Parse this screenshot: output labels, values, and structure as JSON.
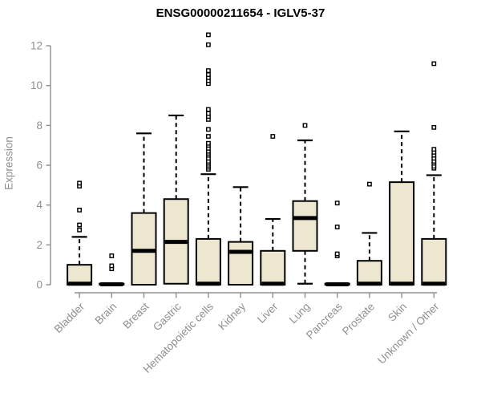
{
  "title": "ENSG00000211654 - IGLV5-37",
  "chart_data": {
    "type": "boxplot",
    "title": "ENSG00000211654 - IGLV5-37",
    "ylabel": "Expression",
    "xlabel": "",
    "ylim": [
      0,
      12.7
    ],
    "yticks": [
      0,
      2,
      4,
      6,
      8,
      10,
      12
    ],
    "grid": false,
    "legend": "none",
    "box_fill": "#ece7ce",
    "box_stroke": "#000000",
    "axis_color": "#8f8f8f",
    "label_color": "#8f8f8f",
    "categories": [
      "Bladder",
      "Brain",
      "Breast",
      "Gastric",
      "Hematopoietic cells",
      "Kidney",
      "Liver",
      "Lung",
      "Pancreas",
      "Prostate",
      "Skin",
      "Unknown / Other"
    ],
    "series": [
      {
        "name": "Bladder",
        "q1": 0,
        "median": 0.05,
        "q3": 1.0,
        "whisker_low": 0,
        "whisker_high": 2.4,
        "outliers": [
          2.75,
          3.0,
          3.75,
          4.95,
          5.1
        ]
      },
      {
        "name": "Brain",
        "q1": 0,
        "median": 0.02,
        "q3": 0.06,
        "whisker_low": 0,
        "whisker_high": 0.06,
        "outliers": [
          0.8,
          0.95,
          1.45
        ]
      },
      {
        "name": "Breast",
        "q1": 0,
        "median": 1.7,
        "q3": 3.6,
        "whisker_low": 0,
        "whisker_high": 7.6,
        "outliers": []
      },
      {
        "name": "Gastric",
        "q1": 0.05,
        "median": 2.15,
        "q3": 4.3,
        "whisker_low": 0.05,
        "whisker_high": 8.5,
        "outliers": []
      },
      {
        "name": "Hematopoietic cells",
        "q1": 0,
        "median": 0.05,
        "q3": 2.3,
        "whisker_low": 0,
        "whisker_high": 5.55,
        "outliers": [
          5.8,
          5.9,
          6.0,
          6.1,
          6.2,
          6.35,
          6.5,
          6.6,
          6.7,
          6.85,
          7.0,
          7.1,
          7.45,
          7.8,
          8.3,
          8.45,
          8.6,
          8.8,
          10.1,
          10.25,
          10.4,
          10.55,
          10.75,
          12.05,
          12.55
        ]
      },
      {
        "name": "Kidney",
        "q1": 0,
        "median": 1.65,
        "q3": 2.15,
        "whisker_low": 0,
        "whisker_high": 4.9,
        "outliers": []
      },
      {
        "name": "Liver",
        "q1": 0,
        "median": 0.05,
        "q3": 1.7,
        "whisker_low": 0,
        "whisker_high": 3.3,
        "outliers": [
          7.45
        ]
      },
      {
        "name": "Lung",
        "q1": 1.7,
        "median": 3.35,
        "q3": 4.2,
        "whisker_low": 0.05,
        "whisker_high": 7.25,
        "outliers": [
          8.0
        ]
      },
      {
        "name": "Pancreas",
        "q1": 0,
        "median": 0.02,
        "q3": 0.06,
        "whisker_low": 0,
        "whisker_high": 0.06,
        "outliers": [
          1.45,
          1.55,
          2.9,
          4.1
        ]
      },
      {
        "name": "Prostate",
        "q1": 0,
        "median": 0.05,
        "q3": 1.2,
        "whisker_low": 0,
        "whisker_high": 2.6,
        "outliers": [
          5.05
        ]
      },
      {
        "name": "Skin",
        "q1": 0,
        "median": 0.05,
        "q3": 5.15,
        "whisker_low": 0,
        "whisker_high": 7.7,
        "outliers": []
      },
      {
        "name": "Unknown / Other",
        "q1": 0,
        "median": 0.05,
        "q3": 2.3,
        "whisker_low": 0,
        "whisker_high": 5.5,
        "outliers": [
          5.85,
          5.95,
          6.1,
          6.2,
          6.35,
          6.5,
          6.65,
          6.8,
          7.9,
          11.1
        ]
      }
    ]
  }
}
